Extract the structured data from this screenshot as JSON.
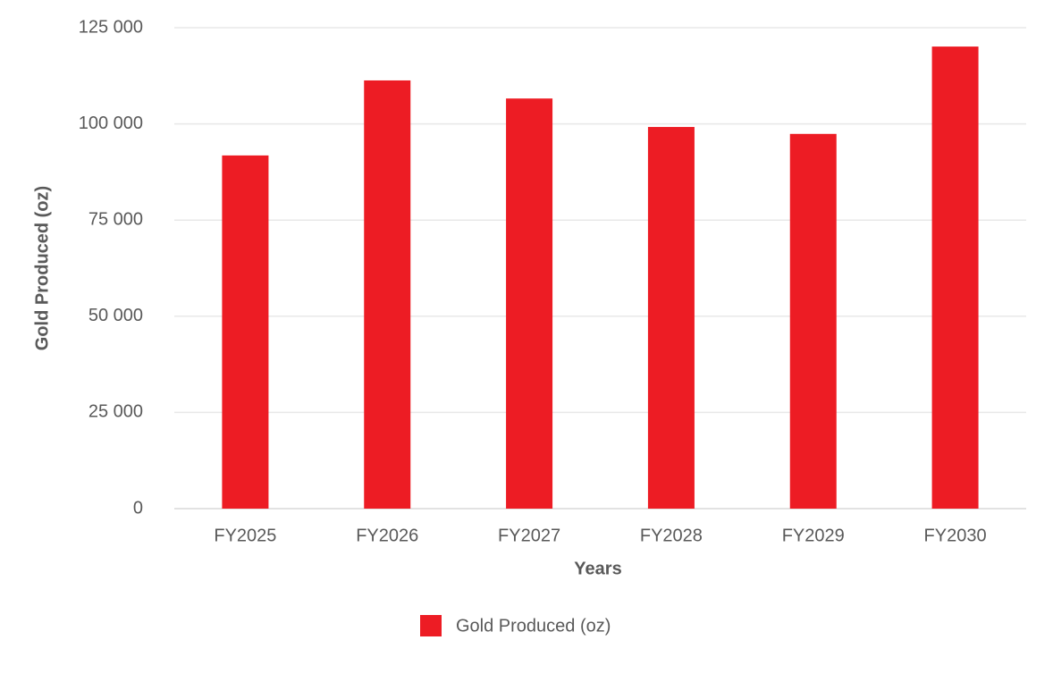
{
  "chart_data": {
    "type": "bar",
    "x_label": "Years",
    "y_label": "Gold Produced (oz)",
    "categories": [
      "FY2025",
      "FY2026",
      "FY2027",
      "FY2028",
      "FY2029",
      "FY2030"
    ],
    "series": [
      {
        "name": "Gold Produced (oz)",
        "color": "#ed1c24",
        "values": [
          91800,
          111300,
          106600,
          99200,
          97400,
          120100
        ]
      }
    ],
    "ylim": [
      0,
      125000
    ],
    "yticks": [
      0,
      {
        "value": 25000,
        "label": "25 000"
      },
      {
        "value": 50000,
        "label": "50 000"
      },
      {
        "value": 75000,
        "label": "75 000"
      },
      {
        "value": 100000,
        "label": "100 000"
      },
      {
        "value": 125000,
        "label": "125 000"
      }
    ],
    "grid": true,
    "legend": "bottom"
  }
}
